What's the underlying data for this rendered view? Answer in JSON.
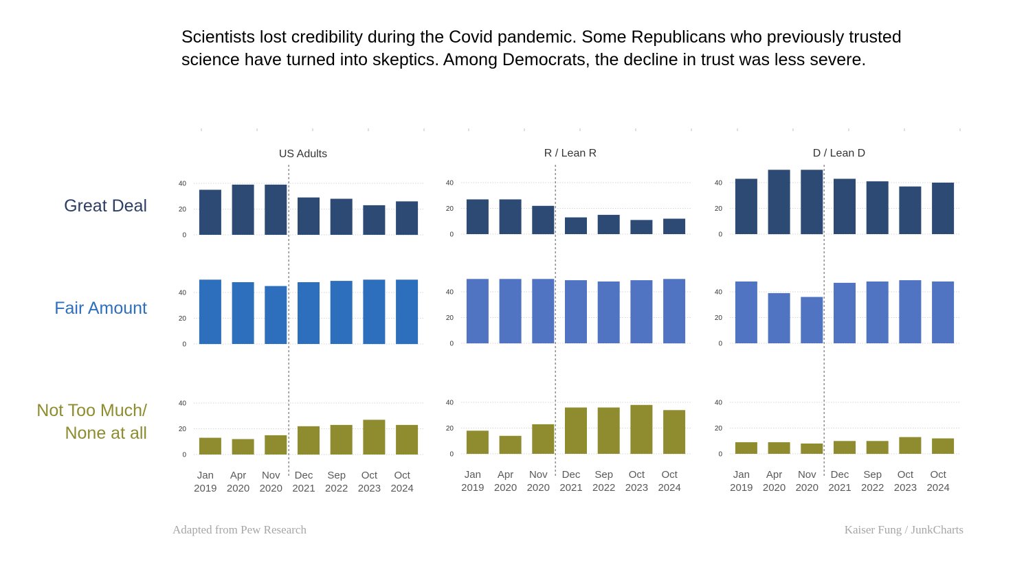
{
  "title": "Scientists lost credibility during the Covid pandemic. Some Republicans who previously trusted science have turned into skeptics. Among Democrats, the decline in trust was less severe.",
  "footer": {
    "source": "Adapted from Pew Research",
    "credit": "Kaiser Fung / JunkCharts"
  },
  "chart_data": {
    "type": "bar",
    "categories": [
      [
        "Jan",
        "2019"
      ],
      [
        "Apr",
        "2020"
      ],
      [
        "Nov",
        "2020"
      ],
      [
        "Dec",
        "2021"
      ],
      [
        "Sep",
        "2022"
      ],
      [
        "Oct",
        "2023"
      ],
      [
        "Oct",
        "2024"
      ]
    ],
    "divider_after_index": 2,
    "ylim": [
      0,
      40
    ],
    "yticks": [
      0,
      20,
      40
    ],
    "grid": true,
    "columns": [
      "US Adults",
      "R / Lean R",
      "D / Lean D"
    ],
    "rows": [
      {
        "label": [
          "Great Deal"
        ],
        "color": "#2c4a74",
        "values": {
          "US Adults": [
            35,
            39,
            39,
            29,
            28,
            23,
            26
          ],
          "R / Lean R": [
            27,
            27,
            22,
            13,
            15,
            11,
            12
          ],
          "D / Lean D": [
            43,
            50,
            50,
            43,
            41,
            37,
            40
          ]
        }
      },
      {
        "label": [
          "Fair Amount"
        ],
        "color_by_column": [
          "#2e6fbd",
          "#5073c2",
          "#5073c2"
        ],
        "values": {
          "US Adults": [
            50,
            48,
            45,
            48,
            49,
            50,
            50
          ],
          "R / Lean R": [
            50,
            50,
            50,
            49,
            48,
            49,
            50
          ],
          "D / Lean D": [
            48,
            39,
            36,
            47,
            48,
            49,
            48
          ]
        }
      },
      {
        "label": [
          "Not Too Much/",
          "None at all"
        ],
        "color": "#8e8c2e",
        "values": {
          "US Adults": [
            13,
            12,
            15,
            22,
            23,
            27,
            23
          ],
          "R / Lean R": [
            18,
            14,
            23,
            36,
            36,
            38,
            34
          ],
          "D / Lean D": [
            9,
            9,
            8,
            10,
            10,
            13,
            12
          ]
        }
      }
    ],
    "row_label_colors": [
      "#2c3e63",
      "#2e6fbd",
      "#8e8c2e"
    ]
  }
}
